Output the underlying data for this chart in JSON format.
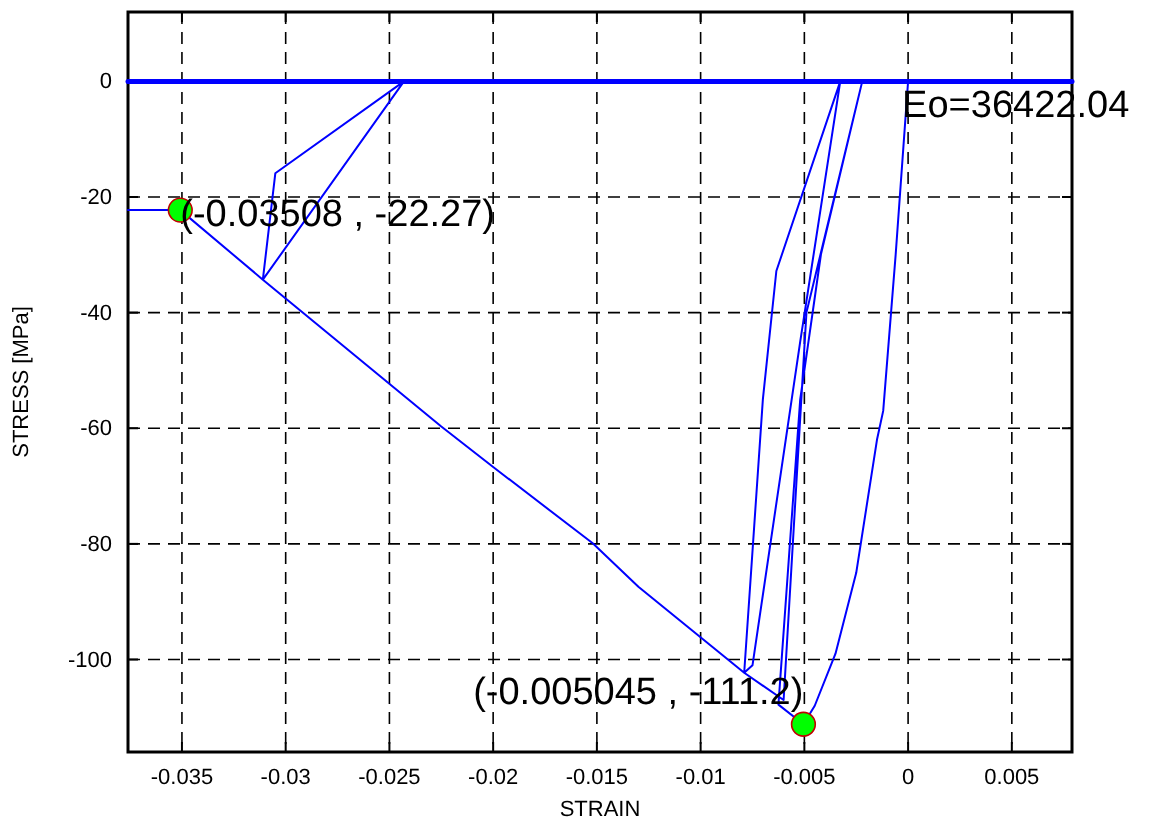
{
  "chart_data": {
    "type": "line",
    "xlabel": "STRAIN",
    "ylabel": "STRESS [MPa]",
    "xlim": [
      -0.0376,
      0.0079
    ],
    "ylim": [
      -116,
      12
    ],
    "xticks": [
      -0.035,
      -0.03,
      -0.025,
      -0.02,
      -0.015,
      -0.01,
      -0.005,
      0,
      0.005
    ],
    "yticks": [
      -100,
      -80,
      -60,
      -40,
      -20,
      0
    ],
    "grid": true,
    "marker": "none",
    "line_style": "solid",
    "series": [
      {
        "color": "#0000ff",
        "x": [
          -0.0376,
          0.0079
        ],
        "values": [
          0,
          0
        ]
      },
      {
        "color": "#0000ff",
        "x": [
          0,
          -0.0006,
          -0.0012,
          -0.0015,
          -0.0025,
          -0.0035,
          -0.0045,
          -0.005045,
          -0.00625,
          -0.0052,
          -0.0042,
          -0.00221,
          -0.0049,
          -0.006,
          -0.0079,
          -0.007,
          -0.00635,
          -0.00327,
          -0.0052,
          -0.0075,
          -0.0079,
          -0.013,
          -0.0152,
          -0.02,
          -0.0225,
          -0.0311,
          -0.0243,
          -0.0305,
          -0.0311,
          -0.0243,
          -0.0311,
          -0.03508,
          -0.0376
        ],
        "values": [
          0,
          -30,
          -57,
          -62,
          -85,
          -99,
          -108,
          -111.2,
          -107.8,
          -55,
          -29.9,
          0,
          -40,
          -107,
          -102.3,
          -55,
          -32.8,
          0,
          -45,
          -101,
          -102.3,
          -87.4,
          -79.9,
          -66.7,
          -59.7,
          -34.3,
          0,
          -15.9,
          -34.3,
          0,
          -34.3,
          -22.27,
          -22.27
        ]
      },
      {
        "type": "scatter",
        "color": "#00ff00",
        "marker": "circle",
        "x": [
          -0.03508,
          -0.005045
        ],
        "values": [
          -22.27,
          -111.2
        ]
      }
    ],
    "annotations": [
      {
        "text": "(-0.03508 , -22.27)",
        "x": -0.03508,
        "y": -22.27
      },
      {
        "text": "(-0.005045 , -111.2)",
        "x": -0.005045,
        "y": -111.2
      },
      {
        "text": "Eo=36422.04",
        "x": 0,
        "y": 0
      }
    ]
  }
}
